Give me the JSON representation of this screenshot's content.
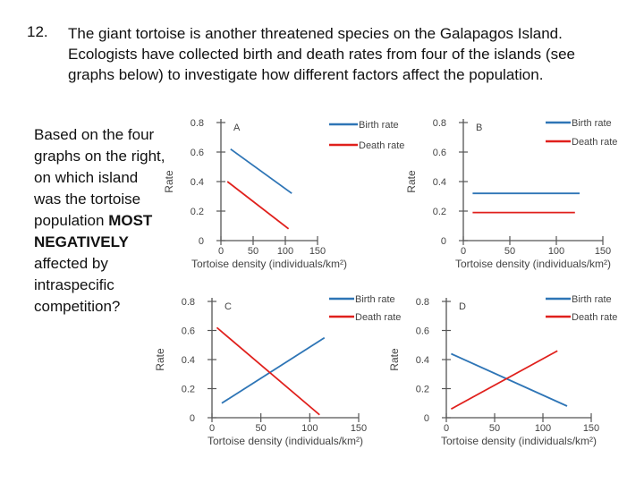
{
  "question": {
    "number": "12.",
    "text": "The giant tortoise is another threatened species on the Galapagos Island. Ecologists have collected birth and death rates from four of the islands (see graphs below) to investigate how different factors affect the population.",
    "prompt_start": "Based on the four graphs on the right, on which island was the tortoise population ",
    "prompt_bold": "MOST NEGATIVELY",
    "prompt_end": " affected by intraspecific competition?"
  },
  "colors": {
    "birth": "#2e75b6",
    "death": "#e0201c",
    "axis": "#555555",
    "text": "#444444"
  },
  "chart_data": [
    {
      "type": "line",
      "title": "A",
      "xlabel": "Tortoise density (individuals/km²)",
      "ylabel": "Rate",
      "xlim": [
        0,
        150
      ],
      "ylim": [
        0,
        0.8
      ],
      "xticks": [
        "0",
        "50",
        "100",
        "150"
      ],
      "yticks": [
        "0",
        "0.2",
        "0.4",
        "0.6",
        "0.8"
      ],
      "series": [
        {
          "name": "Birth rate",
          "x": [
            15,
            110
          ],
          "y": [
            0.62,
            0.32
          ]
        },
        {
          "name": "Death rate",
          "x": [
            10,
            105
          ],
          "y": [
            0.4,
            0.08
          ]
        }
      ]
    },
    {
      "type": "line",
      "title": "B",
      "xlabel": "Tortoise density (individuals/km²)",
      "ylabel": "Rate",
      "xlim": [
        0,
        150
      ],
      "ylim": [
        0,
        0.8
      ],
      "xticks": [
        "0",
        "50",
        "100",
        "150"
      ],
      "yticks": [
        "0",
        "0.2",
        "0.4",
        "0.6",
        "0.8"
      ],
      "series": [
        {
          "name": "Birth rate",
          "x": [
            10,
            125
          ],
          "y": [
            0.32,
            0.32
          ]
        },
        {
          "name": "Death rate",
          "x": [
            10,
            120
          ],
          "y": [
            0.19,
            0.19
          ]
        }
      ]
    },
    {
      "type": "line",
      "title": "C",
      "xlabel": "Tortoise density (individuals/km²)",
      "ylabel": "Rate",
      "xlim": [
        0,
        150
      ],
      "ylim": [
        0,
        0.8
      ],
      "xticks": [
        "0",
        "50",
        "100",
        "150"
      ],
      "yticks": [
        "0",
        "0.2",
        "0.4",
        "0.6",
        "0.8"
      ],
      "series": [
        {
          "name": "Birth rate",
          "x": [
            10,
            115
          ],
          "y": [
            0.1,
            0.55
          ]
        },
        {
          "name": "Death rate",
          "x": [
            5,
            110
          ],
          "y": [
            0.62,
            0.02
          ]
        }
      ]
    },
    {
      "type": "line",
      "title": "D",
      "xlabel": "Tortoise density (individuals/km²)",
      "ylabel": "Rate",
      "xlim": [
        0,
        150
      ],
      "ylim": [
        0,
        0.8
      ],
      "xticks": [
        "0",
        "50",
        "100",
        "150"
      ],
      "yticks": [
        "0",
        "0.2",
        "0.4",
        "0.6",
        "0.8"
      ],
      "series": [
        {
          "name": "Birth rate",
          "x": [
            5,
            125
          ],
          "y": [
            0.44,
            0.08
          ]
        },
        {
          "name": "Death rate",
          "x": [
            5,
            115
          ],
          "y": [
            0.06,
            0.46
          ]
        }
      ]
    }
  ]
}
